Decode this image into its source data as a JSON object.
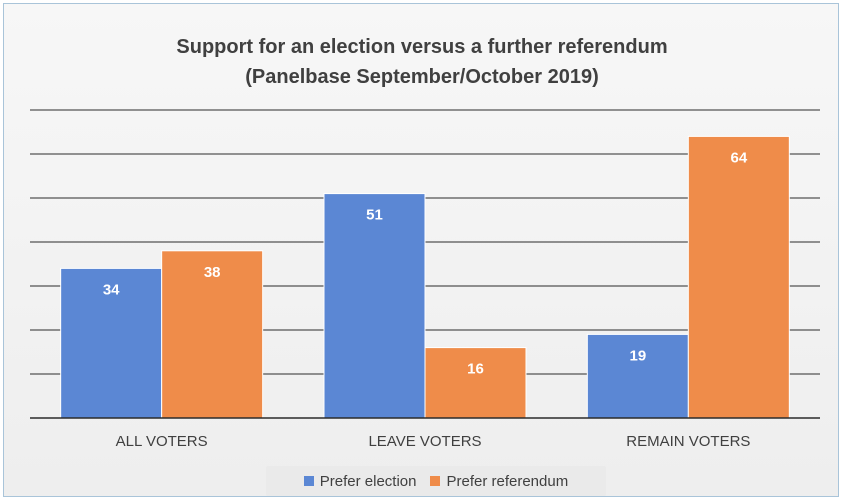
{
  "chart_data": {
    "type": "bar",
    "title": "Support for an election versus a further referendum",
    "subtitle": "(Panelbase September/October 2019)",
    "categories": [
      "ALL VOTERS",
      "LEAVE VOTERS",
      "REMAIN VOTERS"
    ],
    "series": [
      {
        "name": "Prefer election",
        "values": [
          34,
          51,
          19
        ],
        "color": "#5b87d4"
      },
      {
        "name": "Prefer referendum",
        "values": [
          38,
          16,
          64
        ],
        "color": "#ef8c4a"
      }
    ],
    "ylim": [
      0,
      70
    ],
    "grid": true,
    "data_labels": true,
    "legend_position": "bottom"
  }
}
